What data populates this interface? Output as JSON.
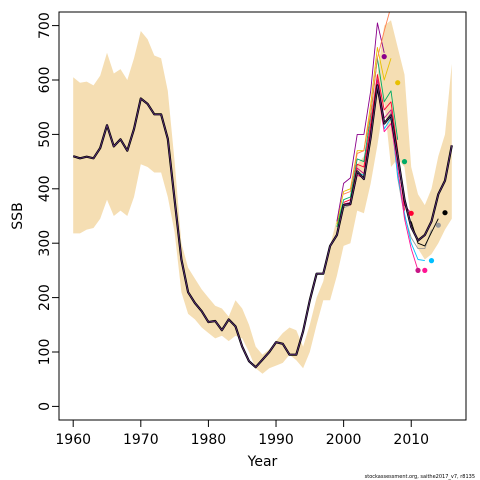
{
  "chart_data": {
    "type": "line",
    "title": "",
    "xlabel": "Year",
    "ylabel": "SSB",
    "xlim": [
      1957.9,
      2018.1
    ],
    "ylim": [
      -25,
      725
    ],
    "x_ticks": [
      1960,
      1970,
      1980,
      1990,
      2000,
      2010
    ],
    "y_ticks": [
      0,
      100,
      200,
      300,
      400,
      500,
      600,
      700
    ],
    "grid": false,
    "legend": "none",
    "footnote": "stockassessment.org, saithe2017_v7, r8135",
    "colors": {
      "band": "#f5deb3",
      "final": "#000000",
      "peels": [
        "#000000",
        "#9a9a9a",
        "#00bfff",
        "#ff1493",
        "#c71585",
        "#ff0033",
        "#00aa66",
        "#e8c000",
        "#8b008b",
        "#ff7f50"
      ]
    },
    "confidence_band": {
      "x": [
        1960,
        1961,
        1962,
        1963,
        1964,
        1965,
        1966,
        1967,
        1968,
        1969,
        1970,
        1971,
        1972,
        1973,
        1974,
        1975,
        1976,
        1977,
        1978,
        1979,
        1980,
        1981,
        1982,
        1983,
        1984,
        1985,
        1986,
        1987,
        1988,
        1989,
        1990,
        1991,
        1992,
        1993,
        1994,
        1995,
        1996,
        1997,
        1998,
        1999,
        2000,
        2001,
        2002,
        2003,
        2004,
        2005,
        2006,
        2007,
        2008,
        2009,
        2010,
        2011,
        2012,
        2013,
        2014,
        2015,
        2016
      ],
      "upper": [
        605,
        595,
        597,
        590,
        608,
        650,
        612,
        620,
        600,
        640,
        690,
        675,
        645,
        640,
        580,
        450,
        300,
        255,
        235,
        215,
        200,
        185,
        180,
        165,
        195,
        180,
        150,
        110,
        95,
        105,
        120,
        135,
        145,
        140,
        110,
        150,
        200,
        230,
        295,
        345,
        375,
        370,
        445,
        460,
        500,
        610,
        700,
        710,
        660,
        610,
        440,
        390,
        370,
        400,
        460,
        500,
        630
      ],
      "lower": [
        318,
        318,
        325,
        328,
        345,
        380,
        350,
        360,
        350,
        385,
        445,
        440,
        430,
        430,
        385,
        320,
        210,
        170,
        160,
        145,
        135,
        125,
        130,
        120,
        130,
        125,
        100,
        70,
        60,
        70,
        75,
        80,
        95,
        85,
        70,
        100,
        150,
        195,
        195,
        240,
        295,
        300,
        360,
        355,
        410,
        480,
        560,
        440,
        455,
        440,
        340,
        290,
        270,
        280,
        300,
        325,
        345
      ]
    },
    "series": [
      {
        "x": [
          1960,
          1961,
          1962,
          1963,
          1964,
          1965,
          1966,
          1967,
          1968,
          1969,
          1970,
          1971,
          1972,
          1973,
          1974,
          1975,
          1976,
          1977,
          1978,
          1979,
          1980,
          1981,
          1982,
          1983,
          1984,
          1985,
          1986,
          1987,
          1988,
          1989,
          1990,
          1991,
          1992,
          1993,
          1994,
          1995,
          1996,
          1997,
          1998,
          1999,
          2000,
          2001,
          2002,
          2003,
          2004,
          2005,
          2006,
          2007,
          2008,
          2009,
          2010,
          2011,
          2012,
          2013,
          2014,
          2015,
          2016
        ],
        "values": [
          460,
          456,
          459,
          456,
          475,
          517,
          478,
          491,
          470,
          510,
          566,
          556,
          537,
          537,
          492,
          380,
          270,
          210,
          190,
          175,
          155,
          157,
          140,
          160,
          147,
          110,
          83,
          72,
          86,
          100,
          118,
          115,
          95,
          95,
          138,
          195,
          244,
          244,
          295,
          315,
          370,
          372,
          432,
          418,
          495,
          590,
          520,
          535,
          460,
          380,
          330,
          305,
          315,
          340,
          390,
          415,
          480
        ]
      },
      {
        "x": [
          2000,
          2001,
          2002,
          2003,
          2004,
          2005,
          2006,
          2007,
          2008,
          2009,
          2010,
          2011,
          2012,
          2013
        ],
        "values": [
          365,
          370,
          425,
          420,
          500,
          605,
          520,
          540,
          420,
          350,
          310,
          290,
          290,
          325
        ],
        "end": {
          "x": 2014,
          "y": 333
        }
      },
      {
        "x": [
          2000,
          2001,
          2002,
          2003,
          2004,
          2005,
          2006,
          2007,
          2008,
          2009,
          2010,
          2011,
          2012
        ],
        "values": [
          370,
          372,
          430,
          425,
          495,
          590,
          510,
          530,
          425,
          355,
          300,
          270,
          268
        ],
        "end": {
          "x": 2013,
          "y": 268
        }
      },
      {
        "x": [
          2000,
          2001,
          2002,
          2003,
          2004,
          2005,
          2006,
          2007,
          2008,
          2009,
          2010,
          2011
        ],
        "values": [
          370,
          370,
          425,
          420,
          490,
          585,
          505,
          520,
          440,
          345,
          290,
          250
        ],
        "end": {
          "x": 2012,
          "y": 250
        }
      },
      {
        "x": [
          2000,
          2001,
          2002,
          2003,
          2004,
          2005,
          2006,
          2007,
          2008,
          2009,
          2010
        ],
        "values": [
          372,
          375,
          438,
          428,
          510,
          600,
          530,
          545,
          455,
          370,
          355
        ],
        "end": {
          "x": 2011,
          "y": 250
        }
      },
      {
        "x": [
          2000,
          2001,
          2002,
          2003,
          2004,
          2005,
          2006,
          2007,
          2008,
          2009
        ],
        "values": [
          375,
          380,
          445,
          440,
          520,
          610,
          545,
          560,
          470,
          360
        ],
        "end": {
          "x": 2010,
          "y": 355
        }
      },
      {
        "x": [
          1999,
          2000,
          2001,
          2002,
          2003,
          2004,
          2005,
          2006,
          2007,
          2008
        ],
        "values": [
          330,
          380,
          385,
          455,
          450,
          535,
          640,
          560,
          580,
          490
        ],
        "end": {
          "x": 2009,
          "y": 450
        }
      },
      {
        "x": [
          1999,
          2000,
          2001,
          2002,
          2003,
          2004,
          2005,
          2006,
          2007
        ],
        "values": [
          335,
          395,
          400,
          470,
          470,
          555,
          660,
          600,
          640
        ],
        "end": {
          "x": 2008,
          "y": 595
        }
      },
      {
        "x": [
          1999,
          2000,
          2001,
          2002,
          2003,
          2004,
          2005,
          2006
        ],
        "values": [
          340,
          410,
          420,
          500,
          500,
          580,
          705,
          650
        ],
        "end": {
          "x": 2006,
          "y": 643
        }
      },
      {
        "x": [
          2000,
          2001,
          2002,
          2003,
          2004,
          2005,
          2006,
          2007
        ],
        "values": [
          390,
          395,
          465,
          470,
          540,
          640,
          690,
          735
        ]
      },
      {
        "x": [
          2010,
          2011,
          2012,
          2013,
          2014
        ],
        "values": [
          340,
          300,
          295,
          320,
          345
        ],
        "end": {
          "x": 2015,
          "y": 356
        }
      }
    ]
  }
}
